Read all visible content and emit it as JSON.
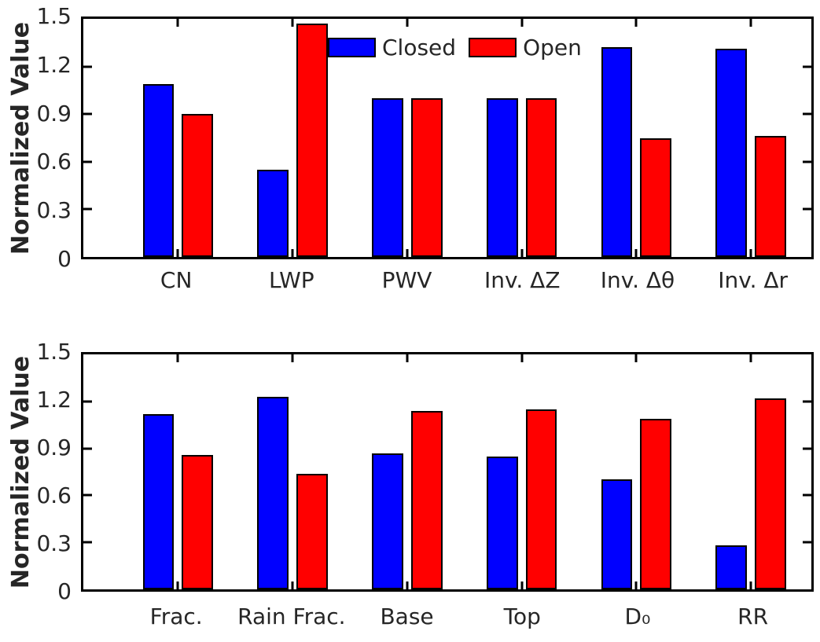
{
  "palette": {
    "closed": "#0000ff",
    "open": "#ff0000",
    "axis": "#000000",
    "text": "#262626"
  },
  "legend": {
    "position": "top-inside",
    "items": [
      {
        "label": "Closed",
        "color_key": "closed"
      },
      {
        "label": "Open",
        "color_key": "open"
      }
    ]
  },
  "chart_data": [
    {
      "type": "bar",
      "panel": "top",
      "title": "",
      "xlabel": "",
      "ylabel": "Normalized Value",
      "ylim": [
        0,
        1.5
      ],
      "yticks": [
        0,
        0.3,
        0.6,
        0.9,
        1.2,
        1.5
      ],
      "yticklabels": [
        "0",
        "0.3",
        "0.6",
        "0.9",
        "1.2",
        "1.5"
      ],
      "grid": false,
      "categories": [
        "CN",
        "LWP",
        "PWV",
        "Inv. ΔZ",
        "Inv. Δθ",
        "Inv. Δr"
      ],
      "series": [
        {
          "name": "Closed",
          "values": [
            1.09,
            0.55,
            1.0,
            1.0,
            1.32,
            1.31
          ]
        },
        {
          "name": "Open",
          "values": [
            0.9,
            1.47,
            1.0,
            1.0,
            0.75,
            0.76
          ]
        }
      ]
    },
    {
      "type": "bar",
      "panel": "bottom",
      "title": "",
      "xlabel": "",
      "ylabel": "Normalized Value",
      "ylim": [
        0,
        1.5
      ],
      "yticks": [
        0,
        0.3,
        0.6,
        0.9,
        1.2,
        1.5
      ],
      "yticklabels": [
        "0",
        "0.3",
        "0.6",
        "0.9",
        "1.2",
        "1.5"
      ],
      "grid": false,
      "categories": [
        "Frac.",
        "Rain Frac.",
        "Base",
        "Top",
        "D₀",
        "RR"
      ],
      "series": [
        {
          "name": "Closed",
          "values": [
            1.12,
            1.23,
            0.87,
            0.85,
            0.7,
            0.28
          ]
        },
        {
          "name": "Open",
          "values": [
            0.86,
            0.74,
            1.14,
            1.15,
            1.09,
            1.22
          ]
        }
      ]
    }
  ]
}
